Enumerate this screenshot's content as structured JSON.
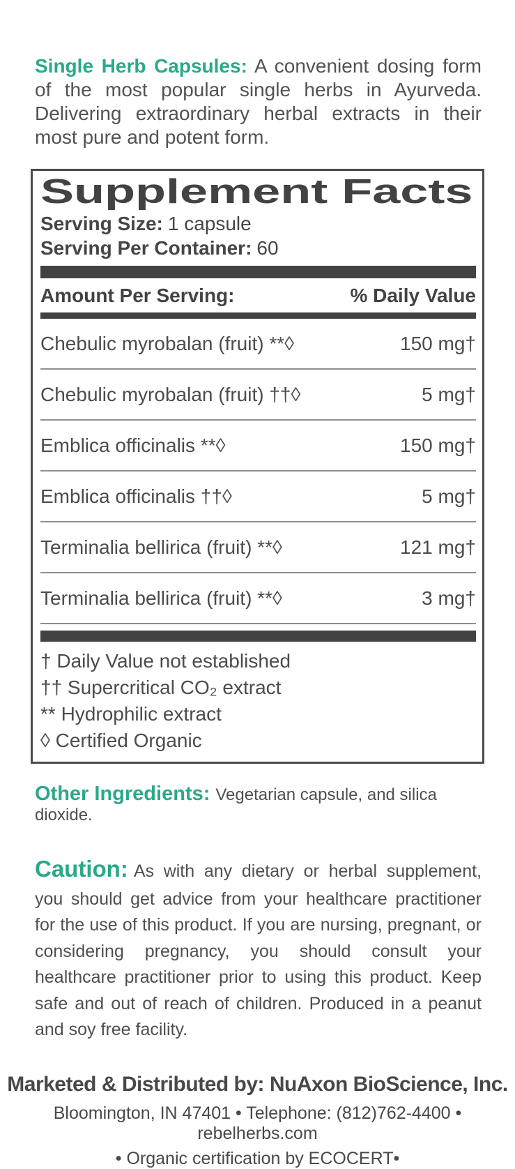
{
  "colors": {
    "accent_teal": "#2aa98b",
    "heading_dark": "#414244",
    "body_text": "#4e4f51",
    "separator_gray": "#8e8f91"
  },
  "intro": {
    "label": "Single Herb Capsules:",
    "text": "A convenient dosing form of the most popular single herbs in Ayurveda. Delivering extraordinary herbal extracts in their most pure and potent form."
  },
  "supplement_facts": {
    "title": "Supplement Facts",
    "serving_size_label": "Serving Size:",
    "serving_size_value": "1 capsule",
    "servings_per_container_label": "Serving Per Container:",
    "servings_per_container_value": "60",
    "column_left": "Amount Per Serving:",
    "column_right": "% Daily Value",
    "rows": [
      {
        "name": "Chebulic myrobalan (fruit) **◊",
        "amount": "150 mg†"
      },
      {
        "name": "Chebulic myrobalan (fruit) ††◊",
        "amount": "5 mg†"
      },
      {
        "name": "Emblica officinalis **◊",
        "amount": "150 mg†"
      },
      {
        "name": "Emblica officinalis ††◊",
        "amount": "5 mg†"
      },
      {
        "name": "Terminalia bellirica (fruit) **◊",
        "amount": "121 mg†"
      },
      {
        "name": "Terminalia bellirica (fruit) **◊",
        "amount": "3 mg†"
      }
    ],
    "footnotes": [
      "† Daily Value not established",
      "†† Supercritical CO₂ extract",
      "** Hydrophilic extract",
      "◊ Certified Organic"
    ]
  },
  "other_ingredients": {
    "label": "Other Ingredients:",
    "text": "Vegetarian capsule, and silica dioxide."
  },
  "caution": {
    "label": "Caution:",
    "text": "As with any dietary or herbal supplement, you should get advice from your healthcare practitioner for the use of this product. If you are nursing, pregnant, or considering pregnancy, you should consult your healthcare practitioner prior to using this product. Keep safe and out of reach of children. Produced in a peanut and soy free facility."
  },
  "footer": {
    "line1": "Marketed & Distributed by: NuAxon BioScience, Inc.",
    "line2": "Bloomington, IN 47401 • Telephone: (812)762-4400 • rebelherbs.com",
    "line3": "• Organic certification by ECOCERT•"
  }
}
